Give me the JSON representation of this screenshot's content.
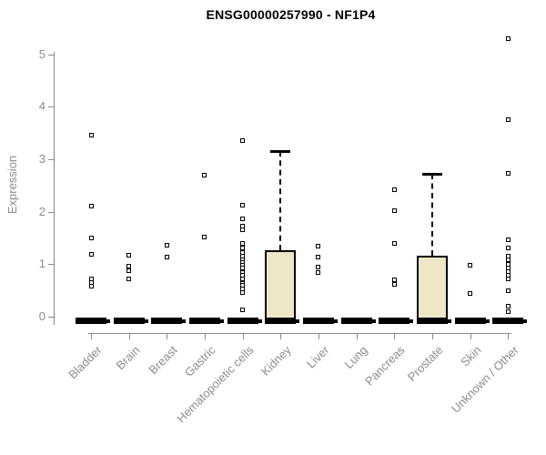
{
  "colors": {
    "title": "#000000",
    "axis": "#8a8a8a",
    "label": "#8c8c8c",
    "box_fill": "#ede7c7",
    "box_border": "#000000",
    "outlier": "#000000"
  },
  "chart_data": {
    "type": "boxplot",
    "title": "ENSG00000257990 - NF1P4",
    "ylabel": "Expression",
    "xlabel": "",
    "ylim": [
      0,
      5.4
    ],
    "yticks": [
      0,
      1,
      2,
      3,
      4,
      5
    ],
    "grid": false,
    "legend": "none",
    "categories": [
      "Bladder",
      "Brain",
      "Breast",
      "Gastric",
      "Hematopoietic cells",
      "Kidney",
      "Liver",
      "Lung",
      "Pancreas",
      "Prostate",
      "Skin",
      "Unknown / Other"
    ],
    "boxes": [
      {
        "category": "Bladder",
        "q1": 0,
        "median": 0,
        "q3": 0,
        "whisker_low": 0,
        "whisker_high": 0,
        "outliers": [
          3.46,
          2.11,
          1.5,
          1.18,
          0.72,
          0.65,
          0.58
        ]
      },
      {
        "category": "Brain",
        "q1": 0,
        "median": 0,
        "q3": 0,
        "whisker_low": 0,
        "whisker_high": 0,
        "outliers": [
          1.17,
          0.96,
          0.88,
          0.72
        ]
      },
      {
        "category": "Breast",
        "q1": 0,
        "median": 0,
        "q3": 0,
        "whisker_low": 0,
        "whisker_high": 0,
        "outliers": [
          1.36,
          1.14
        ]
      },
      {
        "category": "Gastric",
        "q1": 0,
        "median": 0,
        "q3": 0,
        "whisker_low": 0,
        "whisker_high": 0,
        "outliers": [
          2.7,
          1.52
        ]
      },
      {
        "category": "Hematopoietic cells",
        "q1": 0,
        "median": 0,
        "q3": 0,
        "whisker_low": 0,
        "whisker_high": 0,
        "outliers": [
          3.35,
          2.12,
          1.86,
          1.73,
          1.66,
          1.4,
          1.3,
          1.22,
          1.15,
          1.08,
          1.03,
          0.98,
          0.92,
          0.84,
          0.78,
          0.72,
          0.64,
          0.59,
          0.52,
          0.46,
          0.13
        ]
      },
      {
        "category": "Kidney",
        "q1": 0,
        "median": 0,
        "q3": 1.27,
        "whisker_low": 0,
        "whisker_high": 3.16,
        "outliers": []
      },
      {
        "category": "Liver",
        "q1": 0,
        "median": 0,
        "q3": 0,
        "whisker_low": 0,
        "whisker_high": 0,
        "outliers": [
          1.35,
          1.13,
          0.94,
          0.84
        ]
      },
      {
        "category": "Lung",
        "q1": 0,
        "median": 0,
        "q3": 0,
        "whisker_low": 0,
        "whisker_high": 0,
        "outliers": []
      },
      {
        "category": "Pancreas",
        "q1": 0,
        "median": 0,
        "q3": 0,
        "whisker_low": 0,
        "whisker_high": 0,
        "outliers": [
          2.42,
          2.02,
          1.4,
          0.7,
          0.62
        ]
      },
      {
        "category": "Prostate",
        "q1": 0,
        "median": 0,
        "q3": 1.16,
        "whisker_low": 0,
        "whisker_high": 2.72,
        "outliers": []
      },
      {
        "category": "Skin",
        "q1": 0,
        "median": 0,
        "q3": 0,
        "whisker_low": 0,
        "whisker_high": 0,
        "outliers": [
          0.98,
          0.45
        ]
      },
      {
        "category": "Unknown / Other",
        "q1": 0,
        "median": 0,
        "q3": 0,
        "whisker_low": 0,
        "whisker_high": 0,
        "outliers": [
          5.3,
          3.76,
          2.73,
          1.47,
          1.31,
          1.15,
          1.08,
          1.0,
          0.93,
          0.86,
          0.79,
          0.72,
          0.49,
          0.2,
          0.1
        ]
      }
    ]
  }
}
